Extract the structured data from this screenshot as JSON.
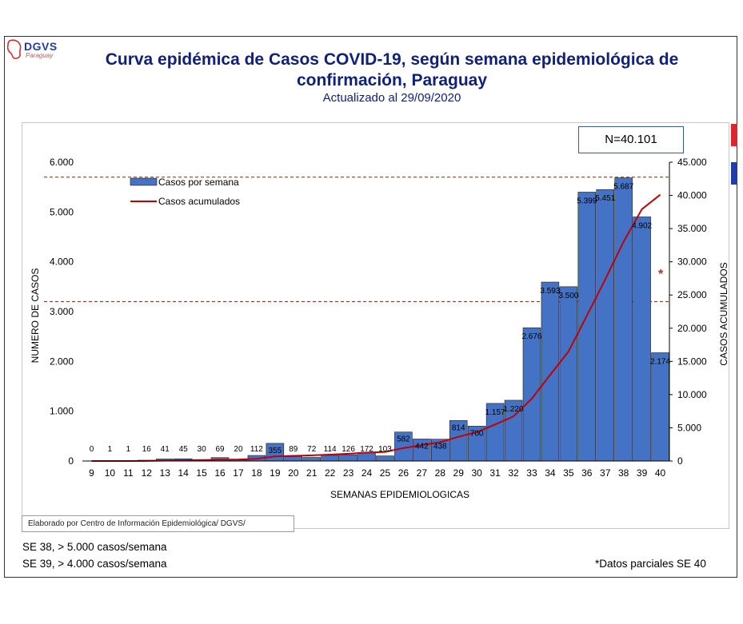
{
  "header": {
    "logo_text": "DGVS",
    "logo_subtext": "Paraguay",
    "title_line1": "Curva epidémica de Casos COVID-19, según semana epidemiológica de",
    "title_line2": "confirmación, Paraguay",
    "subtitle": "Actualizado al 29/09/2020"
  },
  "n_box": "N=40.101",
  "source": "Elaborado por Centro de Información Epidemiológica/ DGVS/",
  "notes": {
    "se38": "SE 38, > 5.000 casos/semana",
    "se39": "SE 39, > 4.000 casos/semana",
    "partial": "*Datos parciales SE 40"
  },
  "colors": {
    "bar": "#4472c4",
    "line": "#c00000",
    "reference": "#d42020",
    "title": "#10217a"
  },
  "chart_data": {
    "type": "bar",
    "title": "Curva epidémica de Casos COVID-19, según semana epidemiológica de confirmación, Paraguay",
    "xlabel": "SEMANAS EPIDEMIOLOGICAS",
    "ylabel": "NUMERO DE CASOS",
    "y2label": "CASOS ACUMULADOS",
    "categories": [
      "9",
      "10",
      "11",
      "12",
      "13",
      "14",
      "15",
      "16",
      "17",
      "18",
      "19",
      "20",
      "21",
      "22",
      "23",
      "24",
      "25",
      "26",
      "27",
      "28",
      "29",
      "30",
      "31",
      "32",
      "33",
      "34",
      "35",
      "36",
      "37",
      "38",
      "39",
      "40"
    ],
    "series": [
      {
        "name": "Casos por semana",
        "type": "bar",
        "axis": "left",
        "values": [
          0,
          1,
          1,
          16,
          41,
          45,
          30,
          69,
          20,
          112,
          355,
          89,
          72,
          114,
          126,
          172,
          103,
          582,
          442,
          438,
          814,
          700,
          1157,
          1220,
          2676,
          3593,
          3500,
          5399,
          5451,
          5687,
          4902,
          2174
        ],
        "labels": [
          "0",
          "1",
          "1",
          "16",
          "41",
          "45",
          "30",
          "69",
          "20",
          "112",
          "355",
          "89",
          "72",
          "114",
          "126",
          "172",
          "103",
          "582",
          "442",
          "438",
          "814",
          "700",
          "1.157",
          "1.220",
          "2.676",
          "3.593",
          "3.500",
          "5.399",
          "5.451",
          "5.687",
          "4.902",
          "2.174"
        ]
      },
      {
        "name": "Casos acumulados",
        "type": "line",
        "axis": "right",
        "values": [
          0,
          1,
          2,
          18,
          59,
          104,
          134,
          203,
          223,
          335,
          690,
          779,
          851,
          965,
          1091,
          1263,
          1366,
          1948,
          2390,
          2828,
          3642,
          4342,
          5499,
          6719,
          9395,
          12988,
          16488,
          21887,
          27338,
          33025,
          37927,
          40101
        ]
      }
    ],
    "y_ticks": [
      "0",
      "1.000",
      "2.000",
      "3.000",
      "4.000",
      "5.000",
      "6.000"
    ],
    "y2_ticks": [
      "0",
      "5.000",
      "10.000",
      "15.000",
      "20.000",
      "25.000",
      "30.000",
      "35.000",
      "40.000",
      "45.000"
    ],
    "ylim": [
      0,
      6000
    ],
    "y2lim": [
      0,
      45000
    ],
    "reference_lines": [
      5700,
      3200
    ],
    "annotation": "*",
    "legend_position": "top-left",
    "grid": false
  }
}
